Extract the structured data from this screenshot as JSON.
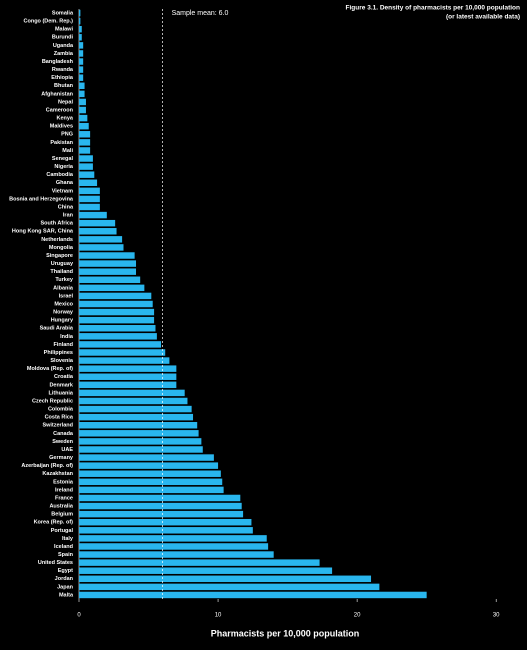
{
  "chart_data": {
    "type": "barh",
    "title": "Figure 3.1. Density of pharmacists per 10,000 population",
    "subtitle": "(or latest available data)",
    "annotation": "Sample mean: 6.0",
    "mean": 6.0,
    "xlabel": "Pharmacists per 10,000 population",
    "color": "#29b6ee",
    "categories": [
      "Somalia",
      "Congo (Dem. Rep.)",
      "Malawi",
      "Burundi",
      "Uganda",
      "Zambia",
      "Bangladesh",
      "Rwanda",
      "Ethiopia",
      "Bhutan",
      "Afghanistan",
      "Nepal",
      "Cameroon",
      "Kenya",
      "Maldives",
      "PNG",
      "Pakistan",
      "Mali",
      "Senegal",
      "Nigeria",
      "Cambodia",
      "Ghana",
      "Vietnam",
      "Bosnia and Herzegovina",
      "China",
      "Iran",
      "South Africa",
      "Hong Kong SAR, China",
      "Netherlands",
      "Mongolia",
      "Singapore",
      "Uruguay",
      "Thailand",
      "Turkey",
      "Albania",
      "Israel",
      "Mexico",
      "Norway",
      "Hungary",
      "Saudi Arabia",
      "India",
      "Finland",
      "Philippines",
      "Slovenia",
      "Moldova (Rep. of)",
      "Croatia",
      "Denmark",
      "Lithuania",
      "Czech Republic",
      "Colombia",
      "Costa Rica",
      "Switzerland",
      "Canada",
      "Sweden",
      "UAE",
      "Germany",
      "Azerbaijan (Rep. of)",
      "Kazakhstan",
      "Estonia",
      "Ireland",
      "France",
      "Australia",
      "Belgium",
      "Korea (Rep. of)",
      "Portugal",
      "Italy",
      "Iceland",
      "Spain",
      "United States",
      "Egypt",
      "Jordan",
      "Japan",
      "Malta"
    ],
    "values": [
      0.1,
      0.1,
      0.2,
      0.2,
      0.3,
      0.3,
      0.3,
      0.3,
      0.3,
      0.4,
      0.4,
      0.5,
      0.5,
      0.6,
      0.7,
      0.8,
      0.8,
      0.8,
      1.0,
      1.0,
      1.1,
      1.3,
      1.5,
      1.5,
      1.5,
      2.0,
      2.6,
      2.7,
      3.1,
      3.2,
      4.0,
      4.1,
      4.1,
      4.4,
      4.7,
      5.2,
      5.3,
      5.4,
      5.4,
      5.5,
      5.6,
      5.9,
      6.2,
      6.5,
      7.0,
      7.0,
      7.0,
      7.6,
      7.8,
      8.1,
      8.2,
      8.5,
      8.6,
      8.8,
      8.9,
      9.7,
      10.0,
      10.2,
      10.3,
      10.4,
      11.6,
      11.7,
      11.8,
      12.4,
      12.5,
      13.5,
      13.6,
      14.0,
      17.3,
      18.2,
      21.0,
      21.6,
      25.0
    ],
    "xlim": [
      0,
      32
    ],
    "xticks": [
      0,
      10,
      20,
      30
    ]
  }
}
